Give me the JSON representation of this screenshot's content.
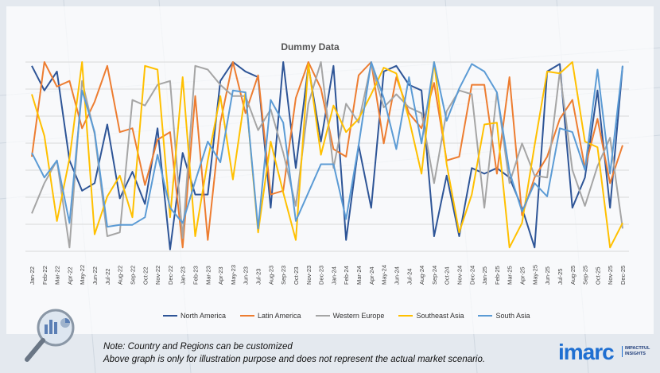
{
  "chart_data": {
    "type": "line",
    "title": "Dummy Data",
    "x": [
      "Jan-22",
      "Feb-22",
      "Mar-22",
      "Apr-22",
      "May-22",
      "Jun-22",
      "Jul-22",
      "Aug-22",
      "Sep-22",
      "Oct-22",
      "Nov-22",
      "Dec-22",
      "Jan-23",
      "Feb-23",
      "Mar-23",
      "Apr-23",
      "May-23",
      "Jun-23",
      "Jul-23",
      "Aug-23",
      "Sep-23",
      "Oct-23",
      "Nov-23",
      "Dec-23",
      "Jan-24",
      "Feb-24",
      "Mar-24",
      "Apr-24",
      "May-24",
      "Jun-24",
      "Jul-24",
      "Aug-24",
      "Sep-24",
      "Oct-24",
      "Nov-24",
      "Dec-24",
      "Jan-25",
      "Feb-25",
      "Mar-25",
      "Apr-25",
      "May-25",
      "Jun-25",
      "Jul-25",
      "Aug-25",
      "Sep-25",
      "Oct-25",
      "Nov-25",
      "Dec-25"
    ],
    "ylim": [
      0,
      10
    ],
    "grid": true,
    "legend": "bottom",
    "series": [
      {
        "name": "North America",
        "color": "#2e5597",
        "values": [
          9.8,
          8.5,
          9.5,
          4.8,
          3.2,
          3.6,
          6.7,
          2.8,
          4.2,
          2.5,
          6.5,
          0.1,
          5.2,
          3.0,
          3.0,
          9.0,
          10.0,
          9.5,
          9.2,
          2.3,
          10.0,
          4.4,
          9.8,
          5.8,
          9.8,
          0.6,
          5.6,
          2.3,
          9.5,
          9.8,
          8.8,
          8.5,
          0.8,
          4.0,
          0.8,
          4.4,
          4.1,
          4.4,
          3.9,
          2.3,
          0.2,
          9.5,
          9.9,
          2.3,
          3.9,
          8.5,
          2.3,
          9.8
        ]
      },
      {
        "name": "Latin America",
        "color": "#ed7d31",
        "values": [
          5.0,
          10.0,
          8.7,
          9.0,
          6.5,
          7.9,
          9.8,
          6.3,
          6.5,
          3.5,
          5.9,
          6.3,
          0.2,
          8.2,
          0.6,
          6.8,
          10.0,
          7.3,
          9.3,
          3.0,
          3.2,
          8.1,
          10.0,
          8.6,
          5.4,
          5.0,
          9.3,
          10.0,
          5.7,
          9.2,
          7.3,
          6.5,
          8.9,
          4.8,
          5.0,
          8.8,
          8.8,
          4.1,
          9.2,
          1.9,
          3.9,
          5.0,
          7.0,
          8.0,
          4.4,
          7.0,
          3.6,
          5.6
        ]
      },
      {
        "name": "Western Europe",
        "color": "#a5a5a5",
        "values": [
          2.0,
          3.6,
          4.8,
          0.2,
          9.0,
          6.2,
          0.8,
          1.0,
          8.0,
          7.7,
          8.8,
          9.0,
          0.7,
          9.8,
          9.6,
          8.8,
          8.2,
          8.2,
          6.4,
          7.5,
          5.2,
          2.4,
          7.8,
          10.0,
          4.4,
          7.8,
          6.8,
          9.9,
          7.6,
          8.3,
          7.6,
          7.3,
          3.6,
          7.4,
          8.5,
          8.3,
          2.3,
          8.4,
          3.6,
          5.7,
          4.0,
          3.9,
          9.5,
          4.3,
          2.4,
          4.5,
          6.0,
          1.2
        ]
      },
      {
        "name": "Southeast Asia",
        "color": "#ffc000",
        "values": [
          8.3,
          6.1,
          1.6,
          4.9,
          10.0,
          0.9,
          2.9,
          4.0,
          1.8,
          9.8,
          9.6,
          1.8,
          9.2,
          0.8,
          4.8,
          8.2,
          3.8,
          8.4,
          1.0,
          5.8,
          3.1,
          0.6,
          9.9,
          5.1,
          7.7,
          6.3,
          7.0,
          8.3,
          9.7,
          9.4,
          7.0,
          4.1,
          10.0,
          4.6,
          1.0,
          3.0,
          6.7,
          6.8,
          0.2,
          1.5,
          5.6,
          9.5,
          9.4,
          10.0,
          5.8,
          5.5,
          0.2,
          1.5
        ]
      },
      {
        "name": "South Asia",
        "color": "#5b9bd5",
        "values": [
          5.2,
          3.9,
          4.8,
          1.5,
          8.5,
          6.3,
          1.3,
          1.4,
          1.4,
          1.8,
          5.1,
          2.3,
          1.5,
          3.7,
          5.8,
          4.7,
          8.5,
          8.4,
          1.2,
          8.0,
          6.8,
          1.6,
          3.1,
          4.6,
          4.6,
          1.7,
          5.6,
          10.0,
          8.1,
          5.4,
          9.2,
          5.7,
          10.0,
          6.9,
          8.6,
          9.9,
          9.5,
          8.4,
          4.2,
          2.1,
          3.6,
          2.9,
          6.5,
          6.3,
          4.3,
          9.6,
          4.1,
          9.8
        ]
      }
    ]
  },
  "note": {
    "line1": "Note: Country and Regions can be customized",
    "line2": "Above graph is only for illustration purpose and does not represent the actual market scenario."
  },
  "brand": {
    "logo_text": "imarc",
    "tagline_1": "IMPACTFUL",
    "tagline_2": "INSIGHTS"
  }
}
